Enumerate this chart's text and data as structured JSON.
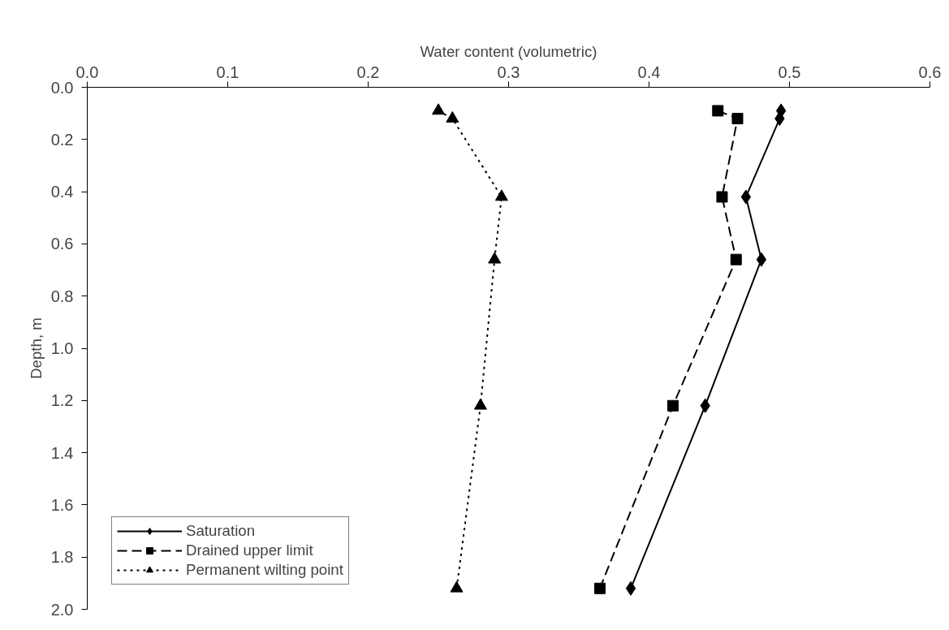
{
  "chart_data": {
    "type": "line",
    "xlabel": "Water content (volumetric)",
    "ylabel": "Depth, m",
    "xlim": [
      0.0,
      0.6
    ],
    "xticks": [
      {
        "value": 0,
        "label": "0.0"
      },
      0.1,
      0.2,
      0.3,
      0.4,
      0.5,
      0.6
    ],
    "ylim": [
      2.0,
      0.0
    ],
    "yticks": [
      {
        "value": 0,
        "label": "0.0"
      },
      0.2,
      0.4,
      0.6,
      0.8,
      {
        "value": 1,
        "label": "1.0"
      },
      1.2,
      1.4,
      1.6,
      1.8,
      {
        "value": 2,
        "label": "2.0"
      }
    ],
    "grid": false,
    "legend": "bottom left",
    "series": [
      {
        "name": "Saturation",
        "color": "#000000",
        "marker": "diamond",
        "line_style": "solid",
        "x": [
          0.494,
          0.493,
          0.469,
          0.48,
          0.44,
          0.387
        ],
        "values": [
          0.09,
          0.12,
          0.42,
          0.66,
          1.22,
          1.92
        ]
      },
      {
        "name": "Drained upper limit",
        "color": "#000000",
        "marker": "square",
        "line_style": "dashed",
        "x": [
          0.449,
          0.463,
          0.452,
          0.462,
          0.417,
          0.365
        ],
        "values": [
          0.09,
          0.12,
          0.42,
          0.66,
          1.22,
          1.92
        ]
      },
      {
        "name": "Permanent wilting point",
        "color": "#000000",
        "marker": "triangle",
        "line_style": "dotted",
        "x": [
          0.25,
          0.26,
          0.295,
          0.29,
          0.28,
          0.263
        ],
        "values": [
          0.09,
          0.12,
          0.42,
          0.66,
          1.22,
          1.92
        ]
      }
    ]
  }
}
